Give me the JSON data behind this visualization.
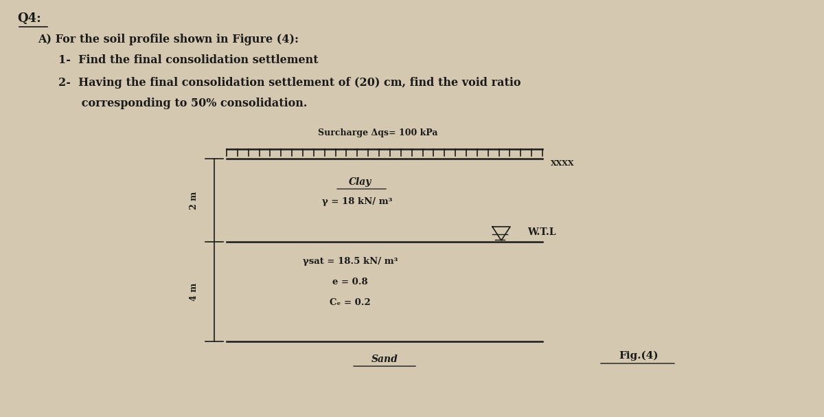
{
  "bg_color": "#d4c9b0",
  "title_text": "Q4:",
  "part_a_text": "A) For the soil profile shown in Figure (4):",
  "item1_text": "1-  Find the final consolidation settlement",
  "item2_line1": "2-  Having the final consolidation settlement of (20) cm, find the void ratio",
  "item2_line2": "      corresponding to 50% consolidation.",
  "surcharge_label": "Surcharge Δqs= 100 kPa",
  "clay_label": "Clay",
  "clay_gamma": "γ = 18 kN/ m³",
  "wtl_label": "W.T.L",
  "sat_label": "γsat = 18.5 kN/ m³",
  "void_ratio": "e = 0.8",
  "cc_label": "Cₑ = 0.2",
  "sand_label": "Sand",
  "fig_label": "Fig.(4)",
  "dim_2m": "2 m",
  "dim_4m": "4 m",
  "text_color": "#1a1a1a",
  "line_color": "#1a1a1a"
}
